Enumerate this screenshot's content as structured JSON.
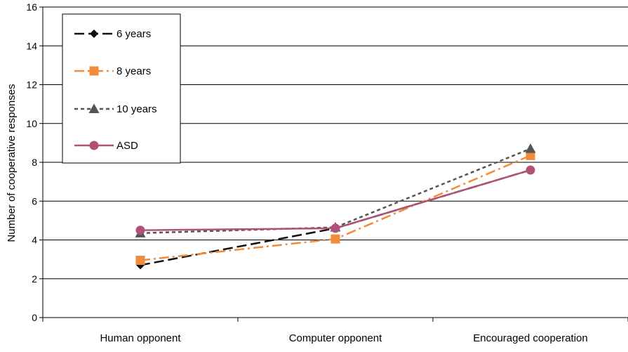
{
  "chart_data": {
    "type": "line",
    "categories": [
      "Human opponent",
      "Computer opponent",
      "Encouraged cooperation"
    ],
    "ylabel": "Number of cooperative responses",
    "xlabel": "",
    "ylim": [
      0,
      16
    ],
    "yticks": [
      0,
      2,
      4,
      6,
      8,
      10,
      12,
      14,
      16
    ],
    "grid": true,
    "legend_position": "top-left",
    "series": [
      {
        "name": "6 years",
        "values": [
          2.7,
          4.6,
          7.6
        ],
        "color": "#111111",
        "marker": "diamond",
        "dash": "14,6"
      },
      {
        "name": "8 years",
        "values": [
          2.95,
          4.05,
          8.35
        ],
        "color": "#f08c3a",
        "marker": "square",
        "dash": "14,5,3,5"
      },
      {
        "name": "10 years",
        "values": [
          4.35,
          4.65,
          8.7
        ],
        "color": "#555555",
        "marker": "triangle",
        "dash": "5,4"
      },
      {
        "name": "ASD",
        "values": [
          4.5,
          4.6,
          7.6
        ],
        "color": "#b05278",
        "marker": "circle",
        "dash": ""
      }
    ]
  }
}
